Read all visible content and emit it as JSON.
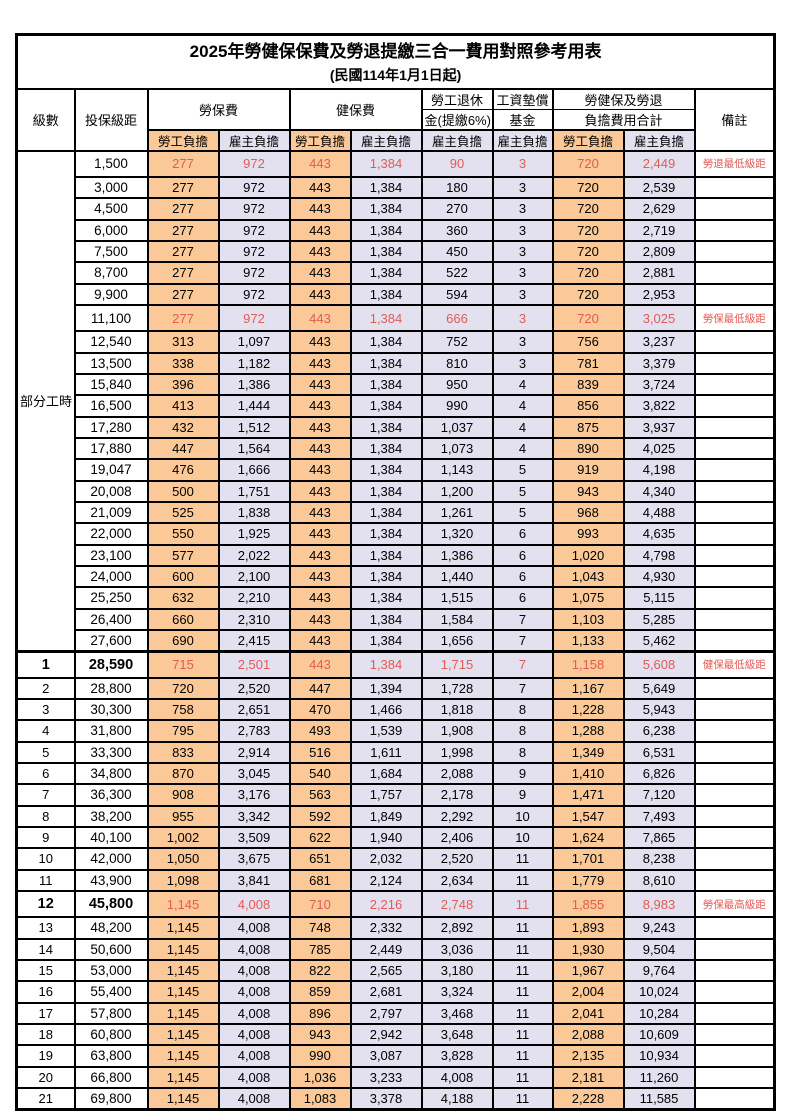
{
  "title": "2025年勞健保保費及勞退提繳三合一費用對照參考用表",
  "subtitle": "(民國114年1月1日起)",
  "colors": {
    "employee_col_bg": "#fac997",
    "employer_col_bg": "#e3e1f0",
    "highlight_text": "#e25b55",
    "border": "#000000",
    "page_bg": "#ffffff"
  },
  "header": {
    "level": "級數",
    "bracket": "投保級距",
    "labor_ins": "勞保費",
    "health_ins": "健保費",
    "pension_line1": "勞工退休",
    "pension_line2": "金(提繳6%)",
    "wage_fund_line1": "工資墊償",
    "wage_fund_line2": "基金",
    "total_line1": "勞健保及勞退",
    "total_line2": "負擔費用合計",
    "note": "備註",
    "employee": "勞工負擔",
    "employer": "雇主負擔"
  },
  "part_time": {
    "label": "部分工時",
    "rowspan": 23
  },
  "rows": [
    {
      "level": "",
      "bracket": "1,500",
      "values": [
        "277",
        "972",
        "443",
        "1,384",
        "90",
        "3",
        "720",
        "2,449"
      ],
      "note": "勞退最低級距",
      "red": true,
      "bold": false
    },
    {
      "level": "",
      "bracket": "3,000",
      "values": [
        "277",
        "972",
        "443",
        "1,384",
        "180",
        "3",
        "720",
        "2,539"
      ],
      "note": "",
      "red": false,
      "bold": false
    },
    {
      "level": "",
      "bracket": "4,500",
      "values": [
        "277",
        "972",
        "443",
        "1,384",
        "270",
        "3",
        "720",
        "2,629"
      ],
      "note": "",
      "red": false,
      "bold": false
    },
    {
      "level": "",
      "bracket": "6,000",
      "values": [
        "277",
        "972",
        "443",
        "1,384",
        "360",
        "3",
        "720",
        "2,719"
      ],
      "note": "",
      "red": false,
      "bold": false
    },
    {
      "level": "",
      "bracket": "7,500",
      "values": [
        "277",
        "972",
        "443",
        "1,384",
        "450",
        "3",
        "720",
        "2,809"
      ],
      "note": "",
      "red": false,
      "bold": false
    },
    {
      "level": "",
      "bracket": "8,700",
      "values": [
        "277",
        "972",
        "443",
        "1,384",
        "522",
        "3",
        "720",
        "2,881"
      ],
      "note": "",
      "red": false,
      "bold": false
    },
    {
      "level": "",
      "bracket": "9,900",
      "values": [
        "277",
        "972",
        "443",
        "1,384",
        "594",
        "3",
        "720",
        "2,953"
      ],
      "note": "",
      "red": false,
      "bold": false
    },
    {
      "level": "",
      "bracket": "11,100",
      "values": [
        "277",
        "972",
        "443",
        "1,384",
        "666",
        "3",
        "720",
        "3,025"
      ],
      "note": "勞保最低級距",
      "red": true,
      "bold": false
    },
    {
      "level": "",
      "bracket": "12,540",
      "values": [
        "313",
        "1,097",
        "443",
        "1,384",
        "752",
        "3",
        "756",
        "3,237"
      ],
      "note": "",
      "red": false,
      "bold": false
    },
    {
      "level": "",
      "bracket": "13,500",
      "values": [
        "338",
        "1,182",
        "443",
        "1,384",
        "810",
        "3",
        "781",
        "3,379"
      ],
      "note": "",
      "red": false,
      "bold": false
    },
    {
      "level": "",
      "bracket": "15,840",
      "values": [
        "396",
        "1,386",
        "443",
        "1,384",
        "950",
        "4",
        "839",
        "3,724"
      ],
      "note": "",
      "red": false,
      "bold": false
    },
    {
      "level": "",
      "bracket": "16,500",
      "values": [
        "413",
        "1,444",
        "443",
        "1,384",
        "990",
        "4",
        "856",
        "3,822"
      ],
      "note": "",
      "red": false,
      "bold": false
    },
    {
      "level": "",
      "bracket": "17,280",
      "values": [
        "432",
        "1,512",
        "443",
        "1,384",
        "1,037",
        "4",
        "875",
        "3,937"
      ],
      "note": "",
      "red": false,
      "bold": false
    },
    {
      "level": "",
      "bracket": "17,880",
      "values": [
        "447",
        "1,564",
        "443",
        "1,384",
        "1,073",
        "4",
        "890",
        "4,025"
      ],
      "note": "",
      "red": false,
      "bold": false
    },
    {
      "level": "",
      "bracket": "19,047",
      "values": [
        "476",
        "1,666",
        "443",
        "1,384",
        "1,143",
        "5",
        "919",
        "4,198"
      ],
      "note": "",
      "red": false,
      "bold": false
    },
    {
      "level": "",
      "bracket": "20,008",
      "values": [
        "500",
        "1,751",
        "443",
        "1,384",
        "1,200",
        "5",
        "943",
        "4,340"
      ],
      "note": "",
      "red": false,
      "bold": false
    },
    {
      "level": "",
      "bracket": "21,009",
      "values": [
        "525",
        "1,838",
        "443",
        "1,384",
        "1,261",
        "5",
        "968",
        "4,488"
      ],
      "note": "",
      "red": false,
      "bold": false
    },
    {
      "level": "",
      "bracket": "22,000",
      "values": [
        "550",
        "1,925",
        "443",
        "1,384",
        "1,320",
        "6",
        "993",
        "4,635"
      ],
      "note": "",
      "red": false,
      "bold": false
    },
    {
      "level": "",
      "bracket": "23,100",
      "values": [
        "577",
        "2,022",
        "443",
        "1,384",
        "1,386",
        "6",
        "1,020",
        "4,798"
      ],
      "note": "",
      "red": false,
      "bold": false
    },
    {
      "level": "",
      "bracket": "24,000",
      "values": [
        "600",
        "2,100",
        "443",
        "1,384",
        "1,440",
        "6",
        "1,043",
        "4,930"
      ],
      "note": "",
      "red": false,
      "bold": false
    },
    {
      "level": "",
      "bracket": "25,250",
      "values": [
        "632",
        "2,210",
        "443",
        "1,384",
        "1,515",
        "6",
        "1,075",
        "5,115"
      ],
      "note": "",
      "red": false,
      "bold": false
    },
    {
      "level": "",
      "bracket": "26,400",
      "values": [
        "660",
        "2,310",
        "443",
        "1,384",
        "1,584",
        "7",
        "1,103",
        "5,285"
      ],
      "note": "",
      "red": false,
      "bold": false
    },
    {
      "level": "",
      "bracket": "27,600",
      "values": [
        "690",
        "2,415",
        "443",
        "1,384",
        "1,656",
        "7",
        "1,133",
        "5,462"
      ],
      "note": "",
      "red": false,
      "bold": false
    },
    {
      "level": "1",
      "bracket": "28,590",
      "values": [
        "715",
        "2,501",
        "443",
        "1,384",
        "1,715",
        "7",
        "1,158",
        "5,608"
      ],
      "note": "健保最低級距",
      "red": true,
      "bold": true
    },
    {
      "level": "2",
      "bracket": "28,800",
      "values": [
        "720",
        "2,520",
        "447",
        "1,394",
        "1,728",
        "7",
        "1,167",
        "5,649"
      ],
      "note": "",
      "red": false,
      "bold": false
    },
    {
      "level": "3",
      "bracket": "30,300",
      "values": [
        "758",
        "2,651",
        "470",
        "1,466",
        "1,818",
        "8",
        "1,228",
        "5,943"
      ],
      "note": "",
      "red": false,
      "bold": false
    },
    {
      "level": "4",
      "bracket": "31,800",
      "values": [
        "795",
        "2,783",
        "493",
        "1,539",
        "1,908",
        "8",
        "1,288",
        "6,238"
      ],
      "note": "",
      "red": false,
      "bold": false
    },
    {
      "level": "5",
      "bracket": "33,300",
      "values": [
        "833",
        "2,914",
        "516",
        "1,611",
        "1,998",
        "8",
        "1,349",
        "6,531"
      ],
      "note": "",
      "red": false,
      "bold": false
    },
    {
      "level": "6",
      "bracket": "34,800",
      "values": [
        "870",
        "3,045",
        "540",
        "1,684",
        "2,088",
        "9",
        "1,410",
        "6,826"
      ],
      "note": "",
      "red": false,
      "bold": false
    },
    {
      "level": "7",
      "bracket": "36,300",
      "values": [
        "908",
        "3,176",
        "563",
        "1,757",
        "2,178",
        "9",
        "1,471",
        "7,120"
      ],
      "note": "",
      "red": false,
      "bold": false
    },
    {
      "level": "8",
      "bracket": "38,200",
      "values": [
        "955",
        "3,342",
        "592",
        "1,849",
        "2,292",
        "10",
        "1,547",
        "7,493"
      ],
      "note": "",
      "red": false,
      "bold": false
    },
    {
      "level": "9",
      "bracket": "40,100",
      "values": [
        "1,002",
        "3,509",
        "622",
        "1,940",
        "2,406",
        "10",
        "1,624",
        "7,865"
      ],
      "note": "",
      "red": false,
      "bold": false
    },
    {
      "level": "10",
      "bracket": "42,000",
      "values": [
        "1,050",
        "3,675",
        "651",
        "2,032",
        "2,520",
        "11",
        "1,701",
        "8,238"
      ],
      "note": "",
      "red": false,
      "bold": false
    },
    {
      "level": "11",
      "bracket": "43,900",
      "values": [
        "1,098",
        "3,841",
        "681",
        "2,124",
        "2,634",
        "11",
        "1,779",
        "8,610"
      ],
      "note": "",
      "red": false,
      "bold": false
    },
    {
      "level": "12",
      "bracket": "45,800",
      "values": [
        "1,145",
        "4,008",
        "710",
        "2,216",
        "2,748",
        "11",
        "1,855",
        "8,983"
      ],
      "note": "勞保最高級距",
      "red": true,
      "bold": true
    },
    {
      "level": "13",
      "bracket": "48,200",
      "values": [
        "1,145",
        "4,008",
        "748",
        "2,332",
        "2,892",
        "11",
        "1,893",
        "9,243"
      ],
      "note": "",
      "red": false,
      "bold": false
    },
    {
      "level": "14",
      "bracket": "50,600",
      "values": [
        "1,145",
        "4,008",
        "785",
        "2,449",
        "3,036",
        "11",
        "1,930",
        "9,504"
      ],
      "note": "",
      "red": false,
      "bold": false
    },
    {
      "level": "15",
      "bracket": "53,000",
      "values": [
        "1,145",
        "4,008",
        "822",
        "2,565",
        "3,180",
        "11",
        "1,967",
        "9,764"
      ],
      "note": "",
      "red": false,
      "bold": false
    },
    {
      "level": "16",
      "bracket": "55,400",
      "values": [
        "1,145",
        "4,008",
        "859",
        "2,681",
        "3,324",
        "11",
        "2,004",
        "10,024"
      ],
      "note": "",
      "red": false,
      "bold": false
    },
    {
      "level": "17",
      "bracket": "57,800",
      "values": [
        "1,145",
        "4,008",
        "896",
        "2,797",
        "3,468",
        "11",
        "2,041",
        "10,284"
      ],
      "note": "",
      "red": false,
      "bold": false
    },
    {
      "level": "18",
      "bracket": "60,800",
      "values": [
        "1,145",
        "4,008",
        "943",
        "2,942",
        "3,648",
        "11",
        "2,088",
        "10,609"
      ],
      "note": "",
      "red": false,
      "bold": false
    },
    {
      "level": "19",
      "bracket": "63,800",
      "values": [
        "1,145",
        "4,008",
        "990",
        "3,087",
        "3,828",
        "11",
        "2,135",
        "10,934"
      ],
      "note": "",
      "red": false,
      "bold": false
    },
    {
      "level": "20",
      "bracket": "66,800",
      "values": [
        "1,145",
        "4,008",
        "1,036",
        "3,233",
        "4,008",
        "11",
        "2,181",
        "11,260"
      ],
      "note": "",
      "red": false,
      "bold": false
    },
    {
      "level": "21",
      "bracket": "69,800",
      "values": [
        "1,145",
        "4,008",
        "1,083",
        "3,378",
        "4,188",
        "11",
        "2,228",
        "11,585"
      ],
      "note": "",
      "red": false,
      "bold": false
    }
  ]
}
